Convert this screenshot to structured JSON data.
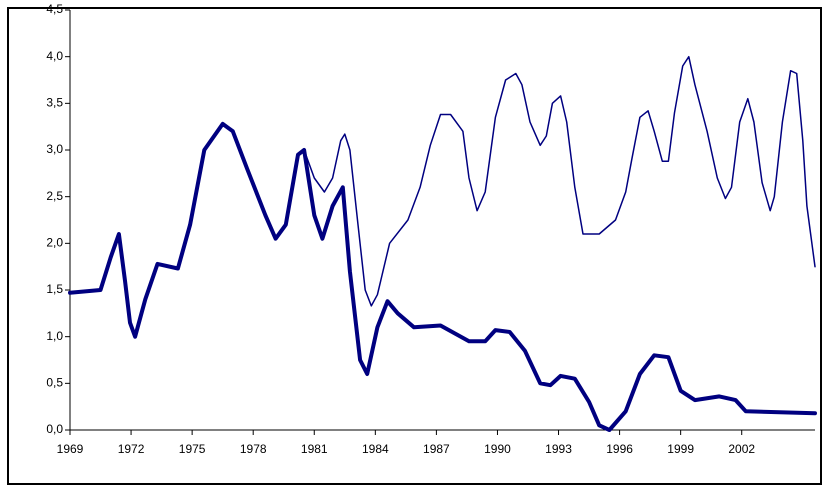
{
  "chart_data": {
    "type": "line",
    "xlim": [
      1969,
      2005.6
    ],
    "xticks": [
      1969,
      1972,
      1975,
      1978,
      1981,
      1984,
      1987,
      1990,
      1993,
      1996,
      1999,
      2002
    ],
    "ylim": [
      0,
      4.5
    ],
    "yticks": [
      {
        "value": 0,
        "label": "0,0"
      },
      {
        "value": 0.5,
        "label": "0,5"
      },
      {
        "value": 1,
        "label": "1,0"
      },
      {
        "value": 1.5,
        "label": "1,5"
      },
      {
        "value": 2,
        "label": "2,0"
      },
      {
        "value": 2.5,
        "label": "2,5"
      },
      {
        "value": 3,
        "label": "3,0"
      },
      {
        "value": 3.5,
        "label": "3,5"
      },
      {
        "value": 4,
        "label": "4,0"
      },
      {
        "value": 4.5,
        "label": "4,5"
      }
    ],
    "series": [
      {
        "color": "#000080",
        "width": 4,
        "x": [
          1969,
          1970.5,
          1971,
          1971.4,
          1971.7,
          1971.95,
          1972.2,
          1972.7,
          1973.3,
          1974.3,
          1974.9,
          1975.6,
          1976.5,
          1977,
          1977.7,
          1978.6,
          1979.1,
          1979.6,
          1980.2,
          1980.5,
          1981,
          1981.4,
          1981.9,
          1982.4,
          1982.75,
          1983.25,
          1983.6,
          1984.1,
          1984.6,
          1985.1,
          1985.9,
          1987.2,
          1988.6,
          1989.4,
          1989.9,
          1990.6,
          1991.35,
          1992.1,
          1992.6,
          1993.1,
          1993.8,
          1994.5,
          1995,
          1995.5,
          1996.3,
          1997,
          1997.7,
          1998.4,
          1999,
          1999.7,
          2000.9,
          2001.7,
          2002.2,
          2005.6
        ],
        "values": [
          1.47,
          1.5,
          1.85,
          2.1,
          1.6,
          1.15,
          1.0,
          1.4,
          1.78,
          1.73,
          2.2,
          3.0,
          3.28,
          3.2,
          2.8,
          2.3,
          2.05,
          2.2,
          2.95,
          3.0,
          2.3,
          2.05,
          2.4,
          2.6,
          1.7,
          0.75,
          0.6,
          1.1,
          1.38,
          1.25,
          1.1,
          1.12,
          0.95,
          0.95,
          1.07,
          1.05,
          0.85,
          0.5,
          0.48,
          0.58,
          0.55,
          0.3,
          0.05,
          0.0,
          0.2,
          0.6,
          0.8,
          0.78,
          0.42,
          0.32,
          0.36,
          0.32,
          0.2,
          0.18
        ]
      },
      {
        "color": "#000080",
        "width": 1.5,
        "x": [
          1969,
          1970.5,
          1971,
          1971.4,
          1971.7,
          1971.95,
          1972.2,
          1972.7,
          1973.3,
          1974.3,
          1974.9,
          1975.6,
          1976.5,
          1977,
          1977.7,
          1978.6,
          1979.1,
          1979.6,
          1980.2,
          1980.5,
          1981,
          1981.5,
          1981.9,
          1982.3,
          1982.5,
          1982.75,
          1983.15,
          1983.5,
          1983.8,
          1984.1,
          1984.7,
          1985.6,
          1986.2,
          1986.7,
          1987.2,
          1987.7,
          1988.3,
          1988.6,
          1989.0,
          1989.4,
          1989.9,
          1990.4,
          1990.9,
          1991.2,
          1991.6,
          1992.1,
          1992.4,
          1992.7,
          1993.1,
          1993.4,
          1993.8,
          1994.2,
          1995,
          1995.8,
          1996.3,
          1996.6,
          1997,
          1997.4,
          1997.7,
          1998.1,
          1998.4,
          1998.7,
          1999.1,
          1999.4,
          1999.7,
          2000.3,
          2000.8,
          2001.2,
          2001.5,
          2001.9,
          2002.3,
          2002.6,
          2003.0,
          2003.4,
          2003.6,
          2004,
          2004.4,
          2004.7,
          2005,
          2005.2,
          2005.6
        ],
        "values": [
          1.47,
          1.5,
          1.85,
          2.1,
          1.6,
          1.15,
          1.0,
          1.4,
          1.78,
          1.73,
          2.2,
          3.0,
          3.28,
          3.2,
          2.8,
          2.3,
          2.05,
          2.2,
          2.95,
          3.0,
          2.7,
          2.55,
          2.7,
          3.1,
          3.17,
          3.0,
          2.2,
          1.5,
          1.33,
          1.45,
          2.0,
          2.25,
          2.6,
          3.05,
          3.38,
          3.38,
          3.2,
          2.7,
          2.35,
          2.55,
          3.35,
          3.75,
          3.82,
          3.7,
          3.3,
          3.05,
          3.15,
          3.5,
          3.58,
          3.3,
          2.6,
          2.1,
          2.1,
          2.25,
          2.55,
          2.9,
          3.35,
          3.42,
          3.2,
          2.88,
          2.88,
          3.4,
          3.9,
          4.0,
          3.7,
          3.2,
          2.7,
          2.48,
          2.6,
          3.3,
          3.55,
          3.3,
          2.65,
          2.35,
          2.5,
          3.3,
          3.85,
          3.82,
          3.1,
          2.4,
          1.75
        ]
      }
    ]
  }
}
